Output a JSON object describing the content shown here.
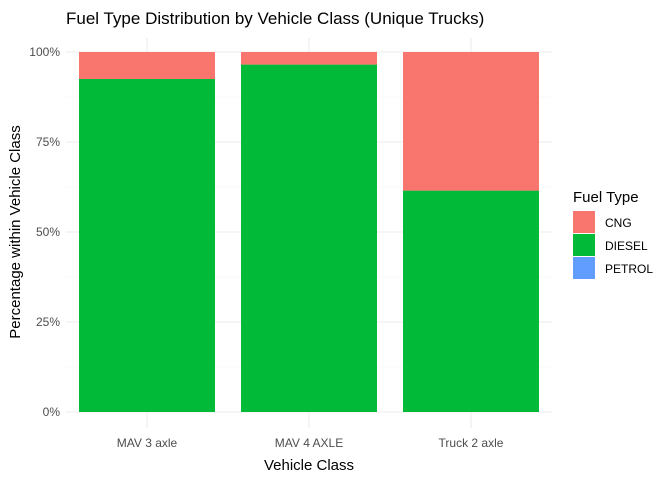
{
  "chart_data": {
    "type": "bar",
    "stacked": true,
    "title": "Fuel Type Distribution by Vehicle Class (Unique Trucks)",
    "xlabel": "Vehicle Class",
    "ylabel": "Percentage within Vehicle Class",
    "categories": [
      "MAV 3 axle",
      "MAV 4 AXLE",
      "Truck 2 axle"
    ],
    "ylim": [
      0,
      1
    ],
    "y_ticks": [
      0,
      0.25,
      0.5,
      0.75,
      1.0
    ],
    "y_tick_labels": [
      "0%",
      "25%",
      "50%",
      "75%",
      "100%"
    ],
    "grid": true,
    "legend": {
      "title": "Fuel Type",
      "position": "right"
    },
    "series": [
      {
        "name": "CNG",
        "color": "#F8766D",
        "values": [
          0.075,
          0.035,
          0.385
        ]
      },
      {
        "name": "DIESEL",
        "color": "#00BA38",
        "values": [
          0.925,
          0.965,
          0.615
        ]
      },
      {
        "name": "PETROL",
        "color": "#619CFF",
        "values": [
          0,
          0,
          0
        ]
      }
    ]
  }
}
